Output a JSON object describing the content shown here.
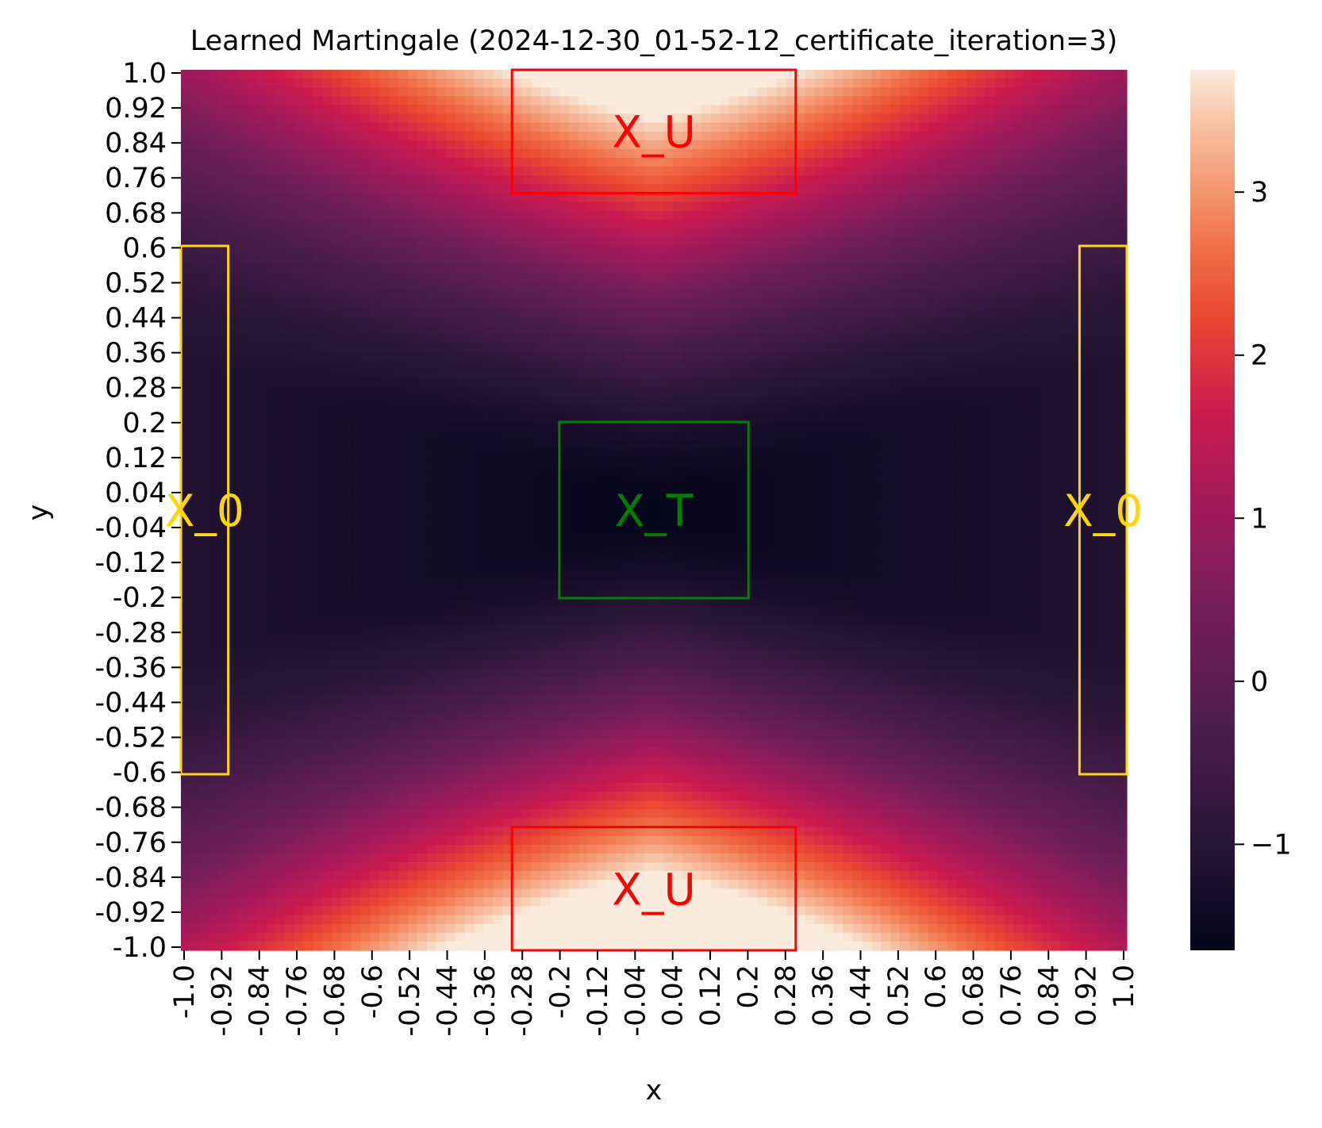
{
  "chart_data": {
    "type": "heatmap",
    "title": "Learned Martingale (2024-12-30_01-52-12_certificate_iteration=3)",
    "xlabel": "x",
    "ylabel": "y",
    "xlim": [
      -1.0,
      1.0
    ],
    "ylim": [
      -1.0,
      1.0
    ],
    "colormap": "rocket",
    "xticklabels": [
      "-1.0",
      "-0.92",
      "-0.84",
      "-0.76",
      "-0.68",
      "-0.6",
      "-0.52",
      "-0.44",
      "-0.36",
      "-0.28",
      "-0.2",
      "-0.12",
      "-0.04",
      "0.04",
      "0.12",
      "0.2",
      "0.28",
      "0.36",
      "0.44",
      "0.52",
      "0.6",
      "0.68",
      "0.76",
      "0.84",
      "0.92",
      "1.0"
    ],
    "yticklabels": [
      "1.0",
      "0.92",
      "0.84",
      "0.76",
      "0.68",
      "0.6",
      "0.52",
      "0.44",
      "0.36",
      "0.28",
      "0.2",
      "0.12",
      "0.04",
      "-0.04",
      "-0.12",
      "-0.2",
      "-0.28",
      "-0.36",
      "-0.44",
      "-0.52",
      "-0.6",
      "-0.68",
      "-0.76",
      "-0.84",
      "-0.92",
      "-1.0"
    ],
    "colorbar": {
      "range": [
        -1.65,
        3.75
      ],
      "ticks": [
        -1,
        0,
        1,
        2,
        3
      ],
      "ticklabels": [
        "−1",
        "0",
        "1",
        "2",
        "3"
      ]
    },
    "approx_values": {
      "center_min": -1.6,
      "bottom_center_max": 3.7,
      "top_center": 3.3,
      "corners_bottom": 2.0,
      "corners_top": 0.8
    },
    "regions": [
      {
        "label": "X_U",
        "x": [
          -0.3,
          0.3
        ],
        "y": [
          0.72,
          1.0
        ],
        "color": "#ff0000"
      },
      {
        "label": "X_U",
        "x": [
          -0.3,
          0.3
        ],
        "y": [
          -1.0,
          -0.72
        ],
        "color": "#ff0000"
      },
      {
        "label": "X_T",
        "x": [
          -0.2,
          0.2
        ],
        "y": [
          -0.2,
          0.2
        ],
        "color": "#008000"
      },
      {
        "label": "X_0",
        "x": [
          -1.0,
          -0.9
        ],
        "y": [
          -0.6,
          0.6
        ],
        "color": "#ffd700"
      },
      {
        "label": "X_0",
        "x": [
          0.9,
          1.0
        ],
        "y": [
          -0.6,
          0.6
        ],
        "color": "#ffd700"
      }
    ]
  }
}
